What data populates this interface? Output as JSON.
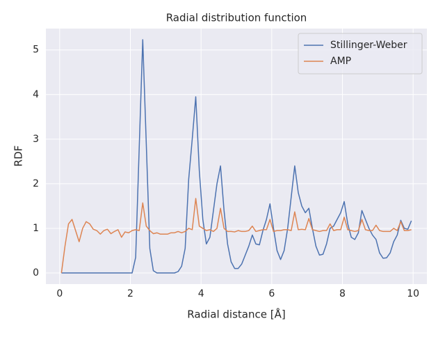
{
  "chart_data": {
    "type": "line",
    "title": "Radial distribution function",
    "xlabel": "Radial distance [Å]",
    "ylabel": "RDF",
    "x": [
      0.05,
      0.15,
      0.25,
      0.35,
      0.45,
      0.55,
      0.65,
      0.75,
      0.85,
      0.95,
      1.05,
      1.15,
      1.25,
      1.35,
      1.45,
      1.55,
      1.65,
      1.75,
      1.85,
      1.95,
      2.05,
      2.15,
      2.25,
      2.35,
      2.45,
      2.55,
      2.65,
      2.75,
      2.85,
      2.95,
      3.05,
      3.15,
      3.25,
      3.35,
      3.45,
      3.55,
      3.65,
      3.75,
      3.85,
      3.95,
      4.05,
      4.15,
      4.25,
      4.35,
      4.45,
      4.55,
      4.65,
      4.75,
      4.85,
      4.95,
      5.05,
      5.15,
      5.25,
      5.35,
      5.45,
      5.55,
      5.65,
      5.75,
      5.85,
      5.95,
      6.05,
      6.15,
      6.25,
      6.35,
      6.45,
      6.55,
      6.65,
      6.75,
      6.85,
      6.95,
      7.05,
      7.15,
      7.25,
      7.35,
      7.45,
      7.55,
      7.65,
      7.75,
      7.85,
      7.95,
      8.05,
      8.15,
      8.25,
      8.35,
      8.45,
      8.55,
      8.65,
      8.75,
      8.85,
      8.95,
      9.05,
      9.15,
      9.25,
      9.35,
      9.45,
      9.55,
      9.65,
      9.75,
      9.85,
      9.95
    ],
    "series": [
      {
        "name": "Stillinger-Weber",
        "color": "#4c72b0",
        "values": [
          0,
          0,
          0,
          0,
          0,
          0,
          0,
          0,
          0,
          0,
          0,
          0,
          0,
          0,
          0,
          0,
          0,
          0,
          0,
          0,
          0,
          0.35,
          2.8,
          5.23,
          2.9,
          0.55,
          0.05,
          0,
          0,
          0,
          0,
          0,
          0,
          0.03,
          0.15,
          0.55,
          2.1,
          3.0,
          3.95,
          2.3,
          1.2,
          0.65,
          0.8,
          1.4,
          2.0,
          2.4,
          1.4,
          0.65,
          0.25,
          0.1,
          0.1,
          0.2,
          0.4,
          0.6,
          0.85,
          0.65,
          0.63,
          0.95,
          1.2,
          1.55,
          1.0,
          0.5,
          0.3,
          0.5,
          1.0,
          1.7,
          2.4,
          1.8,
          1.5,
          1.35,
          1.45,
          1.0,
          0.6,
          0.4,
          0.42,
          0.65,
          1.0,
          1.05,
          1.2,
          1.35,
          1.6,
          1.1,
          0.8,
          0.75,
          0.9,
          1.4,
          1.2,
          1.0,
          0.85,
          0.75,
          0.45,
          0.33,
          0.34,
          0.45,
          0.7,
          0.85,
          1.18,
          1.0,
          0.98,
          1.17
        ]
      },
      {
        "name": "AMP",
        "color": "#dd8452",
        "values": [
          0,
          0.6,
          1.1,
          1.2,
          0.95,
          0.7,
          1.0,
          1.15,
          1.1,
          0.98,
          0.95,
          0.87,
          0.95,
          0.98,
          0.88,
          0.93,
          0.97,
          0.8,
          0.92,
          0.9,
          0.95,
          0.97,
          0.95,
          1.57,
          1.05,
          0.95,
          0.88,
          0.9,
          0.87,
          0.87,
          0.87,
          0.9,
          0.9,
          0.93,
          0.9,
          0.93,
          1.0,
          0.97,
          1.67,
          1.05,
          1.0,
          0.95,
          0.97,
          0.93,
          1.0,
          1.45,
          1.0,
          0.93,
          0.93,
          0.92,
          0.95,
          0.93,
          0.93,
          0.95,
          1.05,
          0.93,
          0.95,
          0.97,
          0.97,
          1.2,
          0.93,
          0.95,
          0.95,
          0.97,
          0.97,
          0.95,
          1.37,
          0.97,
          0.98,
          0.97,
          1.22,
          0.97,
          0.95,
          0.93,
          0.95,
          0.95,
          1.1,
          0.95,
          0.97,
          0.97,
          1.25,
          0.97,
          0.95,
          0.93,
          0.95,
          1.2,
          0.97,
          0.95,
          0.95,
          1.07,
          0.95,
          0.93,
          0.93,
          0.93,
          1.0,
          0.95,
          1.15,
          0.95,
          0.95,
          0.97
        ]
      }
    ],
    "xlim": [
      -0.39,
      10.39
    ],
    "ylim": [
      -0.25,
      5.48
    ],
    "xticks": [
      0,
      2,
      4,
      6,
      8,
      10
    ],
    "yticks": [
      0,
      1,
      2,
      3,
      4,
      5
    ],
    "grid": true,
    "legend": "upper right"
  }
}
